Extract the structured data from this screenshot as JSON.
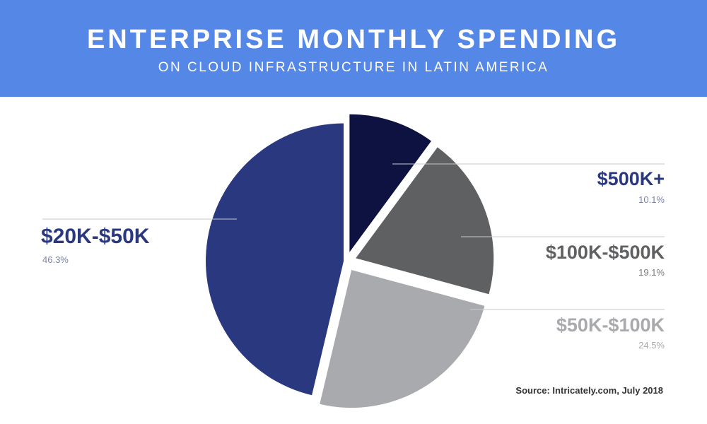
{
  "header": {
    "title": "ENTERPRISE MONTHLY SPENDING",
    "subtitle": "ON CLOUD INFRASTRUCTURE IN LATIN AMERICA"
  },
  "colors": {
    "header_bg": "#5588e6",
    "slice_500k_plus": "#0d1240",
    "slice_100k_500k": "#5f6062",
    "slice_50k_100k": "#a9aaad",
    "slice_20k_50k": "#2a3880",
    "label_dark_blue": "#2a3880",
    "label_dark_gray": "#5f6062",
    "label_light_gray": "#a9aaad"
  },
  "chart_data": {
    "type": "pie",
    "title": "ENTERPRISE MONTHLY SPENDING",
    "subtitle": "ON CLOUD INFRASTRUCTURE IN LATIN AMERICA",
    "slices": [
      {
        "label": "$500K+",
        "value": 10.1,
        "value_text": "10.1%"
      },
      {
        "label": "$100K-$500K",
        "value": 19.1,
        "value_text": "19.1%"
      },
      {
        "label": "$50K-$100K",
        "value": 24.5,
        "value_text": "24.5%"
      },
      {
        "label": "$20K-$50K",
        "value": 46.3,
        "value_text": "46.3%"
      }
    ]
  },
  "source": "Source: Intricately.com, July 2018"
}
